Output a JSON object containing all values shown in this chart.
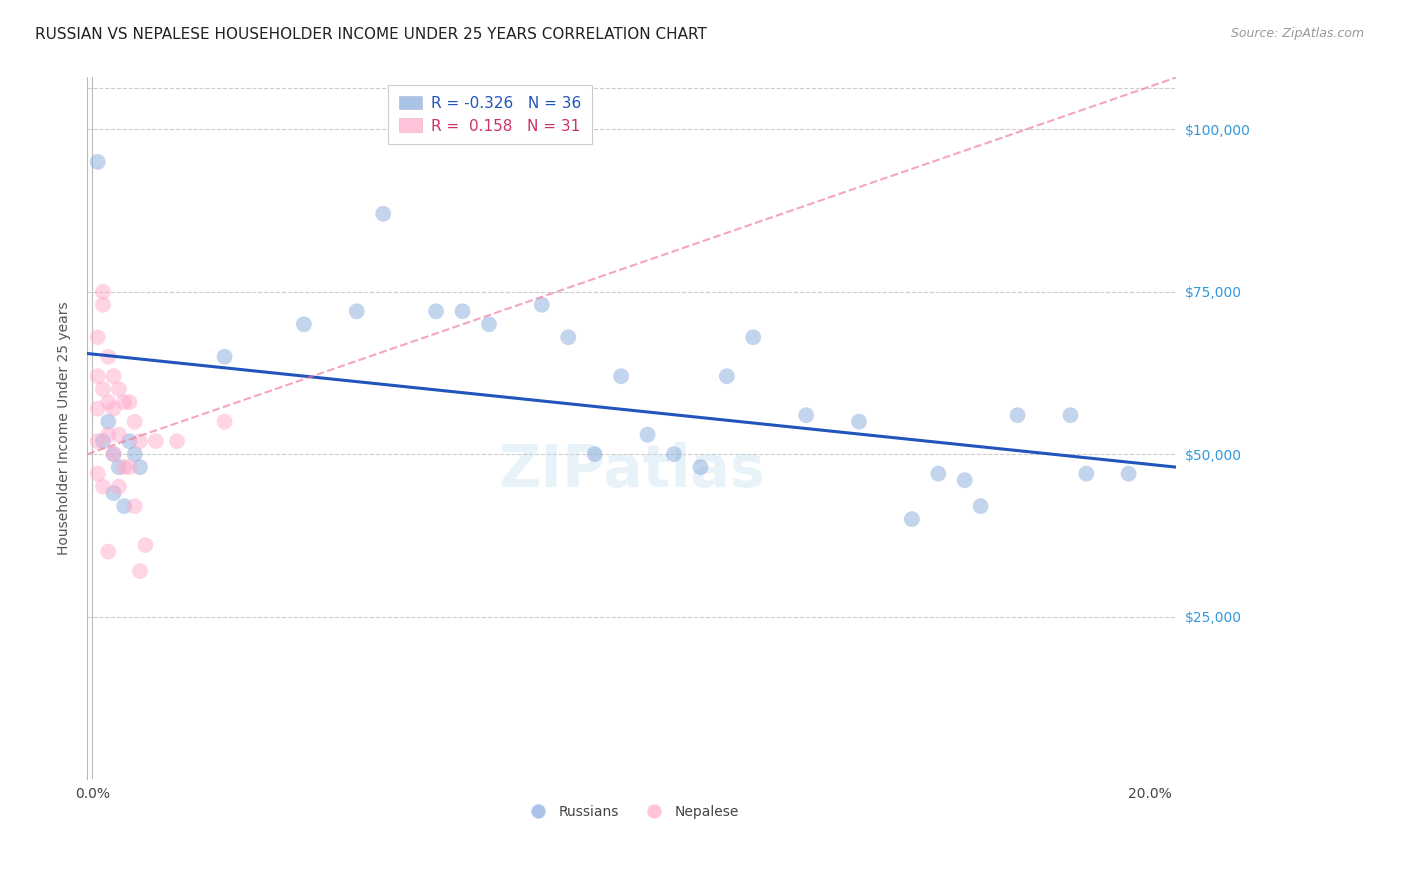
{
  "title": "RUSSIAN VS NEPALESE HOUSEHOLDER INCOME UNDER 25 YEARS CORRELATION CHART",
  "source": "Source: ZipAtlas.com",
  "ylabel": "Householder Income Under 25 years",
  "ytick_labels": [
    "$25,000",
    "$50,000",
    "$75,000",
    "$100,000"
  ],
  "ytick_values": [
    25000,
    50000,
    75000,
    100000
  ],
  "ylim": [
    0,
    108000
  ],
  "xlim": [
    -0.001,
    0.205
  ],
  "russian_color": "#88aadd",
  "nepalese_color": "#ffaacc",
  "russian_line_color": "#2255bb",
  "nepalese_line_color": "#ee7799",
  "grid_color": "#cccccc",
  "watermark": "ZIPatlas",
  "russians_x": [
    0.001,
    0.002,
    0.003,
    0.004,
    0.004,
    0.005,
    0.006,
    0.007,
    0.008,
    0.009,
    0.025,
    0.04,
    0.05,
    0.055,
    0.065,
    0.07,
    0.075,
    0.085,
    0.09,
    0.095,
    0.1,
    0.105,
    0.11,
    0.115,
    0.12,
    0.125,
    0.135,
    0.145,
    0.155,
    0.16,
    0.165,
    0.168,
    0.175,
    0.185,
    0.188,
    0.196
  ],
  "russians_y": [
    95000,
    52000,
    55000,
    50000,
    44000,
    48000,
    42000,
    52000,
    50000,
    48000,
    65000,
    70000,
    72000,
    87000,
    72000,
    72000,
    70000,
    73000,
    68000,
    50000,
    62000,
    53000,
    50000,
    48000,
    62000,
    68000,
    56000,
    55000,
    40000,
    47000,
    46000,
    42000,
    56000,
    56000,
    47000,
    47000
  ],
  "nepalese_x": [
    0.001,
    0.001,
    0.001,
    0.001,
    0.001,
    0.002,
    0.002,
    0.002,
    0.002,
    0.003,
    0.003,
    0.003,
    0.003,
    0.004,
    0.004,
    0.004,
    0.005,
    0.005,
    0.005,
    0.006,
    0.006,
    0.007,
    0.007,
    0.008,
    0.008,
    0.009,
    0.009,
    0.01,
    0.012,
    0.016,
    0.025
  ],
  "nepalese_y": [
    68000,
    62000,
    57000,
    52000,
    47000,
    75000,
    73000,
    60000,
    45000,
    65000,
    58000,
    53000,
    35000,
    62000,
    57000,
    50000,
    60000,
    53000,
    45000,
    58000,
    48000,
    58000,
    48000,
    55000,
    42000,
    52000,
    32000,
    36000,
    52000,
    52000,
    55000
  ],
  "title_fontsize": 11,
  "source_fontsize": 9,
  "axis_label_fontsize": 10,
  "tick_fontsize": 10,
  "legend_fontsize": 11,
  "watermark_fontsize": 42,
  "marker_size": 130,
  "legend_r_russian": "-0.326",
  "legend_n_russian": "36",
  "legend_r_nepalese": "0.158",
  "legend_n_nepalese": "31"
}
